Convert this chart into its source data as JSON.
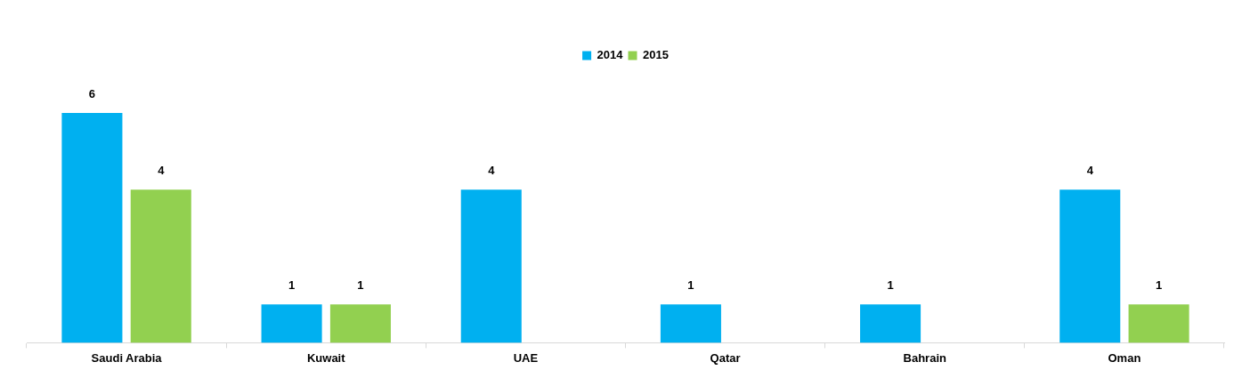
{
  "chart_data": {
    "type": "bar",
    "categories": [
      "Saudi Arabia",
      "Kuwait",
      "UAE",
      "Qatar",
      "Bahrain",
      "Oman"
    ],
    "series": [
      {
        "name": "2014",
        "color": "#00b0f0",
        "values": [
          6,
          1,
          4,
          1,
          1,
          4
        ]
      },
      {
        "name": "2015",
        "color": "#92d050",
        "values": [
          4,
          1,
          null,
          null,
          null,
          1
        ]
      }
    ],
    "data_labels": true,
    "legend": "top",
    "grid": false
  }
}
